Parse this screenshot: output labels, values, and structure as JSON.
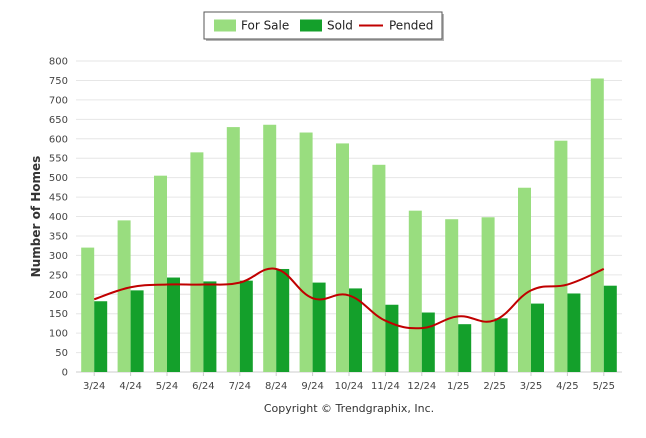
{
  "chart_data": {
    "type": "bar",
    "ylabel": "Number of Homes",
    "xlabel": "",
    "ylim": [
      0,
      800
    ],
    "yticks": [
      "0",
      "50",
      "100",
      "150",
      "200",
      "250",
      "300",
      "350",
      "400",
      "450",
      "500",
      "550",
      "600",
      "650",
      "700",
      "750",
      "800"
    ],
    "categories": [
      "3/24",
      "4/24",
      "5/24",
      "6/24",
      "7/24",
      "8/24",
      "9/24",
      "10/24",
      "11/24",
      "12/24",
      "1/25",
      "2/25",
      "3/25",
      "4/25",
      "5/25"
    ],
    "series": [
      {
        "name": "For Sale",
        "kind": "bar",
        "color": "#99dd7f",
        "values": [
          320,
          390,
          505,
          565,
          630,
          636,
          616,
          588,
          533,
          415,
          393,
          398,
          474,
          595,
          755
        ]
      },
      {
        "name": "Sold",
        "kind": "bar",
        "color": "#14a02b",
        "values": [
          182,
          210,
          243,
          233,
          235,
          265,
          230,
          215,
          173,
          153,
          123,
          138,
          176,
          202,
          222
        ]
      },
      {
        "name": "Pended",
        "kind": "line",
        "color": "#c00000",
        "values": [
          187,
          218,
          225,
          225,
          230,
          265,
          190,
          197,
          132,
          113,
          143,
          133,
          210,
          225,
          265
        ]
      }
    ],
    "grid": true,
    "legend_position": "top-center"
  },
  "footer": {
    "copyright": "Copyright © Trendgraphix, Inc."
  }
}
